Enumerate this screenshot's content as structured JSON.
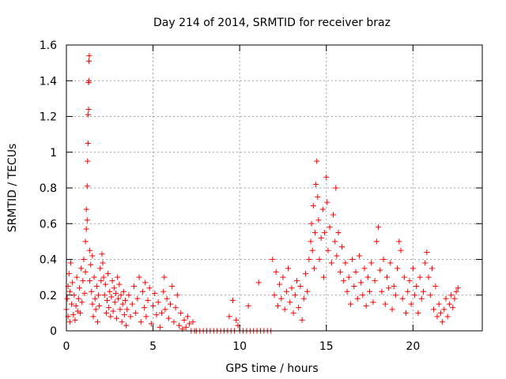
{
  "chart_data": {
    "type": "scatter",
    "title": "Day 214 of 2014, SRMTID for receiver braz",
    "xlabel": "GPS time / hours",
    "ylabel": "SRMTID / TECUs",
    "xlim": [
      0,
      24
    ],
    "ylim": [
      0,
      1.6
    ],
    "xticks": [
      0,
      5,
      10,
      15,
      20
    ],
    "xtick_labels": [
      "0",
      "5",
      "10",
      "15",
      "20"
    ],
    "yticks": [
      0,
      0.2,
      0.4,
      0.6,
      0.8,
      1.0,
      1.2,
      1.4,
      1.6
    ],
    "ytick_labels": [
      "0",
      "0.2",
      "0.4",
      "0.6",
      "0.8",
      "1",
      "1.2",
      "1.4",
      "1.6"
    ],
    "grid": true,
    "marker": "+",
    "color": "#ff0000",
    "series": [
      {
        "name": "SRMTID",
        "points": [
          [
            0.0,
            0.12
          ],
          [
            0.05,
            0.18
          ],
          [
            0.1,
            0.25
          ],
          [
            0.1,
            0.08
          ],
          [
            0.15,
            0.32
          ],
          [
            0.2,
            0.05
          ],
          [
            0.2,
            0.22
          ],
          [
            0.25,
            0.38
          ],
          [
            0.3,
            0.15
          ],
          [
            0.35,
            0.27
          ],
          [
            0.4,
            0.09
          ],
          [
            0.45,
            0.2
          ],
          [
            0.5,
            0.06
          ],
          [
            0.55,
            0.14
          ],
          [
            0.6,
            0.3
          ],
          [
            0.65,
            0.11
          ],
          [
            0.7,
            0.18
          ],
          [
            0.75,
            0.24
          ],
          [
            0.8,
            0.1
          ],
          [
            0.85,
            0.35
          ],
          [
            0.9,
            0.16
          ],
          [
            0.95,
            0.28
          ],
          [
            1.0,
            0.4
          ],
          [
            1.05,
            0.21
          ],
          [
            1.1,
            0.33
          ],
          [
            1.1,
            0.5
          ],
          [
            1.15,
            0.57
          ],
          [
            1.15,
            0.68
          ],
          [
            1.2,
            0.62
          ],
          [
            1.2,
            0.81
          ],
          [
            1.22,
            0.95
          ],
          [
            1.25,
            1.05
          ],
          [
            1.25,
            1.21
          ],
          [
            1.28,
            1.24
          ],
          [
            1.28,
            1.39
          ],
          [
            1.3,
            1.4
          ],
          [
            1.3,
            1.51
          ],
          [
            1.32,
            1.54
          ],
          [
            1.35,
            0.45
          ],
          [
            1.35,
            0.28
          ],
          [
            1.4,
            0.37
          ],
          [
            1.45,
            0.22
          ],
          [
            1.5,
            0.15
          ],
          [
            1.5,
            0.42
          ],
          [
            1.55,
            0.08
          ],
          [
            1.6,
            0.3
          ],
          [
            1.65,
            0.18
          ],
          [
            1.7,
            0.12
          ],
          [
            1.75,
            0.25
          ],
          [
            1.8,
            0.05
          ],
          [
            1.85,
            0.2
          ],
          [
            1.9,
            0.14
          ],
          [
            1.95,
            0.35
          ],
          [
            2.0,
            0.28
          ],
          [
            2.05,
            0.43
          ],
          [
            2.1,
            0.38
          ],
          [
            2.15,
            0.3
          ],
          [
            2.2,
            0.2
          ],
          [
            2.25,
            0.26
          ],
          [
            2.3,
            0.1
          ],
          [
            2.35,
            0.17
          ],
          [
            2.4,
            0.32
          ],
          [
            2.45,
            0.13
          ],
          [
            2.5,
            0.22
          ],
          [
            2.55,
            0.08
          ],
          [
            2.6,
            0.19
          ],
          [
            2.65,
            0.28
          ],
          [
            2.7,
            0.11
          ],
          [
            2.75,
            0.24
          ],
          [
            2.8,
            0.16
          ],
          [
            2.85,
            0.21
          ],
          [
            2.9,
            0.07
          ],
          [
            2.95,
            0.3
          ],
          [
            3.0,
            0.18
          ],
          [
            3.05,
            0.26
          ],
          [
            3.1,
            0.12
          ],
          [
            3.15,
            0.2
          ],
          [
            3.2,
            0.05
          ],
          [
            3.25,
            0.15
          ],
          [
            3.3,
            0.22
          ],
          [
            3.35,
            0.09
          ],
          [
            3.4,
            0.17
          ],
          [
            3.45,
            0.03
          ],
          [
            3.5,
            0.12
          ],
          [
            3.6,
            0.2
          ],
          [
            3.7,
            0.08
          ],
          [
            3.8,
            0.15
          ],
          [
            3.9,
            0.25
          ],
          [
            4.0,
            0.1
          ],
          [
            4.1,
            0.18
          ],
          [
            4.2,
            0.3
          ],
          [
            4.3,
            0.05
          ],
          [
            4.4,
            0.22
          ],
          [
            4.5,
            0.13
          ],
          [
            4.55,
            0.27
          ],
          [
            4.6,
            0.08
          ],
          [
            4.7,
            0.17
          ],
          [
            4.8,
            0.24
          ],
          [
            4.9,
            0.04
          ],
          [
            5.0,
            0.14
          ],
          [
            5.1,
            0.21
          ],
          [
            5.2,
            0.09
          ],
          [
            5.3,
            0.16
          ],
          [
            5.4,
            0.02
          ],
          [
            5.5,
            0.1
          ],
          [
            5.6,
            0.22
          ],
          [
            5.65,
            0.3
          ],
          [
            5.7,
            0.12
          ],
          [
            5.8,
            0.18
          ],
          [
            5.9,
            0.07
          ],
          [
            6.0,
            0.15
          ],
          [
            6.1,
            0.25
          ],
          [
            6.2,
            0.05
          ],
          [
            6.3,
            0.13
          ],
          [
            6.4,
            0.2
          ],
          [
            6.5,
            0.03
          ],
          [
            6.6,
            0.1
          ],
          [
            6.7,
            0.01
          ],
          [
            6.8,
            0.06
          ],
          [
            6.9,
            0.02
          ],
          [
            7.0,
            0.08
          ],
          [
            7.1,
            0.04
          ],
          [
            7.2,
            0.0
          ],
          [
            7.3,
            0.05
          ],
          [
            7.4,
            0.0
          ],
          [
            7.5,
            0.0
          ],
          [
            7.7,
            0.0
          ],
          [
            7.9,
            0.0
          ],
          [
            8.1,
            0.0
          ],
          [
            8.3,
            0.0
          ],
          [
            8.5,
            0.0
          ],
          [
            8.7,
            0.0
          ],
          [
            8.9,
            0.0
          ],
          [
            9.1,
            0.0
          ],
          [
            9.3,
            0.0
          ],
          [
            9.4,
            0.08
          ],
          [
            9.5,
            0.0
          ],
          [
            9.6,
            0.17
          ],
          [
            9.7,
            0.0
          ],
          [
            9.8,
            0.06
          ],
          [
            9.9,
            0.03
          ],
          [
            10.0,
            0.0
          ],
          [
            10.2,
            0.0
          ],
          [
            10.4,
            0.0
          ],
          [
            10.5,
            0.14
          ],
          [
            10.6,
            0.0
          ],
          [
            10.8,
            0.0
          ],
          [
            11.0,
            0.0
          ],
          [
            11.1,
            0.27
          ],
          [
            11.2,
            0.0
          ],
          [
            11.4,
            0.0
          ],
          [
            11.6,
            0.0
          ],
          [
            11.8,
            0.0
          ],
          [
            11.9,
            0.4
          ],
          [
            12.0,
            0.2
          ],
          [
            12.1,
            0.33
          ],
          [
            12.2,
            0.14
          ],
          [
            12.3,
            0.26
          ],
          [
            12.4,
            0.18
          ],
          [
            12.5,
            0.3
          ],
          [
            12.6,
            0.12
          ],
          [
            12.7,
            0.22
          ],
          [
            12.8,
            0.35
          ],
          [
            12.9,
            0.16
          ],
          [
            13.0,
            0.24
          ],
          [
            13.1,
            0.1
          ],
          [
            13.2,
            0.2
          ],
          [
            13.3,
            0.28
          ],
          [
            13.4,
            0.13
          ],
          [
            13.5,
            0.25
          ],
          [
            13.6,
            0.06
          ],
          [
            13.7,
            0.18
          ],
          [
            13.8,
            0.32
          ],
          [
            13.9,
            0.22
          ],
          [
            14.0,
            0.4
          ],
          [
            14.1,
            0.5
          ],
          [
            14.15,
            0.6
          ],
          [
            14.2,
            0.45
          ],
          [
            14.25,
            0.7
          ],
          [
            14.3,
            0.35
          ],
          [
            14.35,
            0.55
          ],
          [
            14.4,
            0.82
          ],
          [
            14.45,
            0.95
          ],
          [
            14.5,
            0.75
          ],
          [
            14.55,
            0.62
          ],
          [
            14.6,
            0.4
          ],
          [
            14.7,
            0.52
          ],
          [
            14.8,
            0.68
          ],
          [
            14.85,
            0.3
          ],
          [
            14.9,
            0.55
          ],
          [
            15.0,
            0.86
          ],
          [
            15.05,
            0.72
          ],
          [
            15.1,
            0.45
          ],
          [
            15.2,
            0.58
          ],
          [
            15.3,
            0.38
          ],
          [
            15.4,
            0.65
          ],
          [
            15.5,
            0.5
          ],
          [
            15.55,
            0.8
          ],
          [
            15.6,
            0.42
          ],
          [
            15.7,
            0.55
          ],
          [
            15.8,
            0.33
          ],
          [
            15.9,
            0.47
          ],
          [
            16.0,
            0.28
          ],
          [
            16.1,
            0.38
          ],
          [
            16.2,
            0.22
          ],
          [
            16.3,
            0.3
          ],
          [
            16.4,
            0.15
          ],
          [
            16.5,
            0.4
          ],
          [
            16.6,
            0.25
          ],
          [
            16.7,
            0.33
          ],
          [
            16.8,
            0.18
          ],
          [
            16.9,
            0.42
          ],
          [
            17.0,
            0.27
          ],
          [
            17.1,
            0.2
          ],
          [
            17.2,
            0.35
          ],
          [
            17.3,
            0.14
          ],
          [
            17.4,
            0.3
          ],
          [
            17.5,
            0.22
          ],
          [
            17.6,
            0.38
          ],
          [
            17.7,
            0.16
          ],
          [
            17.8,
            0.28
          ],
          [
            17.9,
            0.5
          ],
          [
            18.0,
            0.58
          ],
          [
            18.1,
            0.34
          ],
          [
            18.2,
            0.22
          ],
          [
            18.3,
            0.4
          ],
          [
            18.4,
            0.15
          ],
          [
            18.5,
            0.3
          ],
          [
            18.6,
            0.24
          ],
          [
            18.7,
            0.38
          ],
          [
            18.8,
            0.12
          ],
          [
            18.9,
            0.25
          ],
          [
            19.0,
            0.2
          ],
          [
            19.1,
            0.35
          ],
          [
            19.2,
            0.5
          ],
          [
            19.3,
            0.45
          ],
          [
            19.4,
            0.18
          ],
          [
            19.5,
            0.3
          ],
          [
            19.6,
            0.1
          ],
          [
            19.7,
            0.22
          ],
          [
            19.8,
            0.28
          ],
          [
            19.9,
            0.15
          ],
          [
            20.0,
            0.35
          ],
          [
            20.1,
            0.2
          ],
          [
            20.2,
            0.25
          ],
          [
            20.3,
            0.1
          ],
          [
            20.4,
            0.3
          ],
          [
            20.5,
            0.18
          ],
          [
            20.6,
            0.22
          ],
          [
            20.7,
            0.38
          ],
          [
            20.8,
            0.44
          ],
          [
            20.9,
            0.3
          ],
          [
            21.0,
            0.2
          ],
          [
            21.1,
            0.35
          ],
          [
            21.2,
            0.12
          ],
          [
            21.3,
            0.25
          ],
          [
            21.4,
            0.08
          ],
          [
            21.5,
            0.15
          ],
          [
            21.6,
            0.1
          ],
          [
            21.7,
            0.05
          ],
          [
            21.8,
            0.12
          ],
          [
            21.9,
            0.18
          ],
          [
            22.0,
            0.08
          ],
          [
            22.1,
            0.15
          ],
          [
            22.2,
            0.2
          ],
          [
            22.3,
            0.13
          ],
          [
            22.4,
            0.18
          ],
          [
            22.5,
            0.22
          ],
          [
            22.6,
            0.24
          ]
        ]
      }
    ]
  }
}
